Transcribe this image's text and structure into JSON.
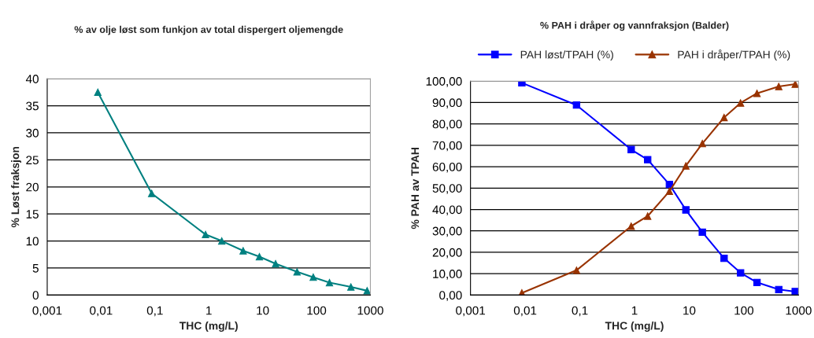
{
  "chart_data": [
    {
      "type": "line",
      "title": "% av olje løst som funkjon av total dispergert oljemengde",
      "xlabel": "THC (mg/L)",
      "ylabel": "% Løst fraksjon",
      "log": "x",
      "grid": "y",
      "legend": false,
      "marker": "triangle",
      "line_style": "solid",
      "x": [
        0.0087,
        0.087,
        0.87,
        1.74,
        4.35,
        8.7,
        17.4,
        43.5,
        87,
        174,
        435,
        870
      ],
      "series": [
        {
          "color": "#008080",
          "values": [
            37.5,
            18.8,
            11.2,
            10.0,
            8.2,
            7.1,
            5.8,
            4.3,
            3.3,
            2.3,
            1.5,
            0.8
          ]
        }
      ],
      "xlim": [
        0.001,
        1000
      ],
      "xticks": [
        {
          "value": 0.001,
          "label": "0,001"
        },
        {
          "value": 0.01,
          "label": "0,01"
        },
        {
          "value": 0.1,
          "label": "0,1"
        },
        1,
        10,
        100,
        1000
      ],
      "ylim": [
        0,
        40
      ],
      "yticks": [
        0,
        5,
        10,
        15,
        20,
        25,
        30,
        35,
        40
      ]
    },
    {
      "type": "line",
      "title": "% PAH i dråper og vannfraksjon (Balder)",
      "xlabel": "THC (mg/L)",
      "ylabel": "% PAH av TPAH",
      "log": "x",
      "grid": "y",
      "legend": "top",
      "line_style": "solid",
      "x": [
        0.0087,
        0.087,
        0.87,
        1.74,
        4.35,
        8.7,
        17.4,
        43.5,
        87,
        174,
        435,
        870
      ],
      "series": [
        {
          "name": "PAH løst/TPAH (%)",
          "color": "#0000ff",
          "marker": "square",
          "values": [
            99.2,
            88.8,
            68.0,
            63.3,
            51.7,
            39.8,
            29.4,
            17.2,
            10.4,
            5.9,
            2.6,
            1.6
          ]
        },
        {
          "name": "PAH i dråper/TPAH (%)",
          "color": "#993300",
          "marker": "triangle",
          "values": [
            1.0,
            11.6,
            32.2,
            36.9,
            48.5,
            60.4,
            70.8,
            83.0,
            89.8,
            94.3,
            97.5,
            98.6
          ]
        }
      ],
      "xlim": [
        0.001,
        1000
      ],
      "xticks": [
        {
          "value": 0.001,
          "label": "0,001"
        },
        {
          "value": 0.01,
          "label": "0,01"
        },
        {
          "value": 0.1,
          "label": "0,1"
        },
        1,
        10,
        100,
        1000
      ],
      "ylim": [
        0,
        100
      ],
      "yticks": [
        {
          "value": 0,
          "label": "0,00"
        },
        {
          "value": 10,
          "label": "10,00"
        },
        {
          "value": 20,
          "label": "20,00"
        },
        {
          "value": 30,
          "label": "30,00"
        },
        {
          "value": 40,
          "label": "40,00"
        },
        {
          "value": 50,
          "label": "50,00"
        },
        {
          "value": 60,
          "label": "60,00"
        },
        {
          "value": 70,
          "label": "70,00"
        },
        {
          "value": 80,
          "label": "80,00"
        },
        {
          "value": 90,
          "label": "90,00"
        },
        {
          "value": 100,
          "label": "100,00"
        }
      ]
    }
  ]
}
